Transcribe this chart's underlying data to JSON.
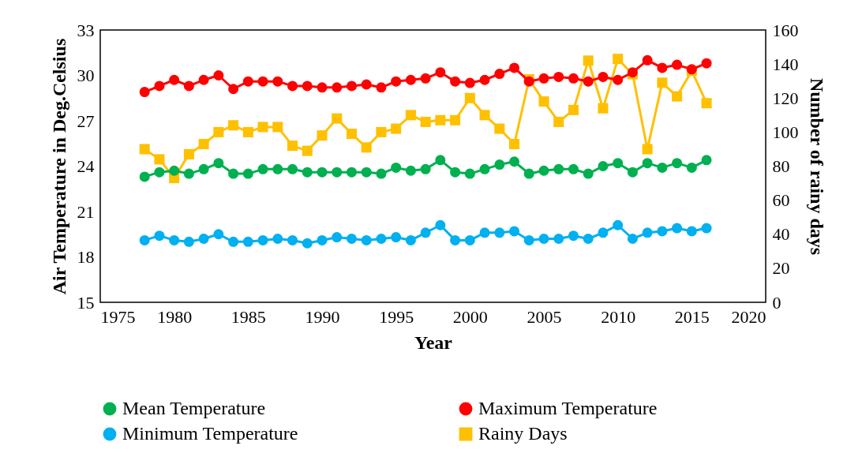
{
  "chart_data": {
    "type": "line",
    "xlabel": "Year",
    "ylabel": "Air Temperature in Deg.Celsius",
    "y2label": "Number of rainy days",
    "x": [
      1978,
      1979,
      1980,
      1981,
      1982,
      1983,
      1984,
      1985,
      1986,
      1987,
      1988,
      1989,
      1990,
      1991,
      1992,
      1993,
      1994,
      1995,
      1996,
      1997,
      1998,
      1999,
      2000,
      2001,
      2002,
      2003,
      2004,
      2005,
      2006,
      2007,
      2008,
      2009,
      2010,
      2011,
      2012,
      2013,
      2014,
      2015,
      2016
    ],
    "xlim": [
      1975,
      2020
    ],
    "xticks": [
      1975,
      1980,
      1985,
      1990,
      1995,
      2000,
      2005,
      2010,
      2015,
      2020
    ],
    "ylim": [
      15,
      33
    ],
    "yticks": [
      15,
      18,
      21,
      24,
      27,
      30,
      33
    ],
    "y2lim": [
      0,
      160
    ],
    "y2ticks": [
      0,
      20,
      40,
      60,
      80,
      100,
      120,
      140,
      160
    ],
    "legend": "bottom",
    "line_style": "solid",
    "series": [
      {
        "name": "Mean Temperature",
        "color": "#00b050",
        "marker": "circle",
        "values": [
          23.3,
          23.6,
          23.7,
          23.5,
          23.8,
          24.2,
          23.5,
          23.5,
          23.8,
          23.8,
          23.8,
          23.6,
          23.6,
          23.6,
          23.6,
          23.6,
          23.5,
          23.9,
          23.7,
          23.8,
          24.4,
          23.6,
          23.5,
          23.8,
          24.1,
          24.3,
          23.5,
          23.7,
          23.8,
          23.8,
          23.5,
          24.0,
          24.2,
          23.6,
          24.2,
          23.9,
          24.2,
          23.9,
          24.4
        ]
      },
      {
        "name": "Maximum Temperature",
        "color": "#ff0000",
        "marker": "circle",
        "values": [
          28.9,
          29.3,
          29.7,
          29.3,
          29.7,
          30.0,
          29.1,
          29.6,
          29.6,
          29.6,
          29.3,
          29.3,
          29.2,
          29.2,
          29.3,
          29.4,
          29.2,
          29.6,
          29.7,
          29.8,
          30.2,
          29.6,
          29.5,
          29.7,
          30.1,
          30.5,
          29.6,
          29.8,
          29.9,
          29.8,
          29.6,
          29.9,
          29.7,
          30.2,
          31.0,
          30.5,
          30.7,
          30.4,
          30.8
        ]
      },
      {
        "name": "Minimum Temperature",
        "color": "#00b0f0",
        "marker": "circle",
        "values": [
          19.1,
          19.4,
          19.1,
          19.0,
          19.2,
          19.5,
          19.0,
          19.0,
          19.1,
          19.2,
          19.1,
          18.9,
          19.1,
          19.3,
          19.2,
          19.1,
          19.2,
          19.3,
          19.1,
          19.6,
          20.1,
          19.1,
          19.1,
          19.6,
          19.6,
          19.7,
          19.1,
          19.2,
          19.2,
          19.4,
          19.2,
          19.6,
          20.1,
          19.2,
          19.6,
          19.7,
          19.9,
          19.7,
          19.9
        ]
      },
      {
        "name": "Rainy Days",
        "color": "#ffc000",
        "marker": "square",
        "axis": "y2",
        "values": [
          90,
          84,
          73,
          87,
          93,
          100,
          104,
          100,
          103,
          103,
          92,
          89,
          98,
          108,
          99,
          91,
          100,
          102,
          110,
          106,
          107,
          107,
          120,
          110,
          102,
          93,
          131,
          118,
          106,
          113,
          142,
          114,
          143,
          134,
          90,
          129,
          121,
          136,
          117
        ]
      }
    ]
  }
}
